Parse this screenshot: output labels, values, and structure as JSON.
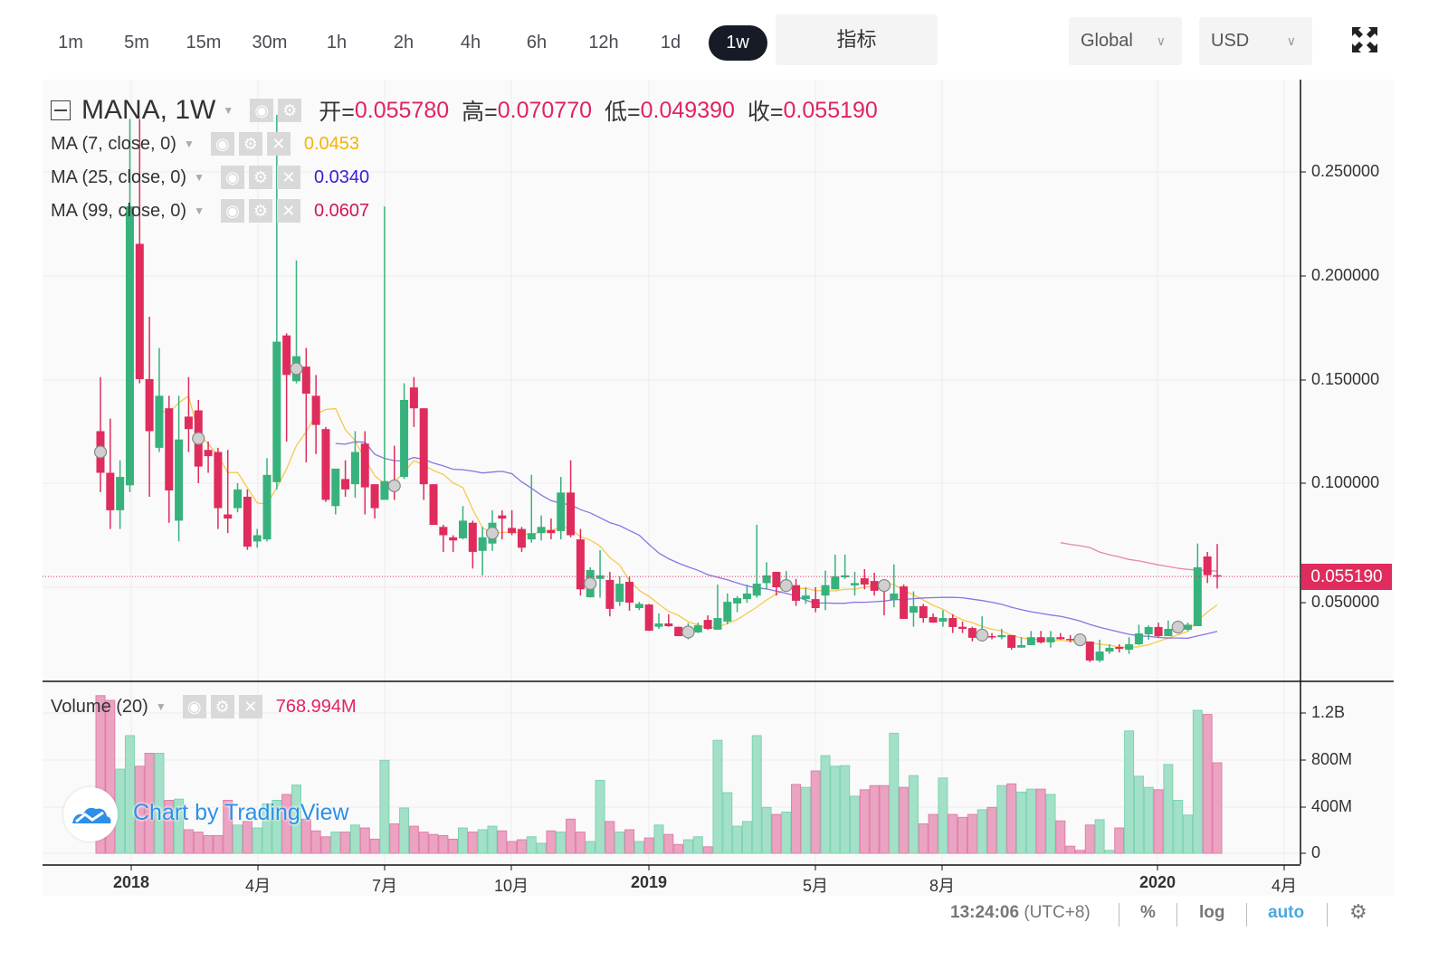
{
  "toolbar": {
    "intervals": [
      "1m",
      "5m",
      "15m",
      "30m",
      "1h",
      "2h",
      "4h",
      "6h",
      "12h",
      "1d",
      "1w"
    ],
    "active_interval": "1w",
    "indicators_label": "指标",
    "exchange_select": "Global",
    "currency_select": "USD",
    "fullscreen_icon": "fullscreen-icon"
  },
  "legend": {
    "symbol": "MANA, 1W",
    "open_label": "开=",
    "open": "0.055780",
    "high_label": "高=",
    "high": "0.070770",
    "low_label": "低=",
    "low": "0.049390",
    "close_label": "收=",
    "close": "0.055190",
    "ma": [
      {
        "label": "MA (7, close, 0)",
        "value": "0.0453",
        "color": "#f5b400"
      },
      {
        "label": "MA (25, close, 0)",
        "value": "0.0340",
        "color": "#3d1bd6"
      },
      {
        "label": "MA (99, close, 0)",
        "value": "0.0607",
        "color": "#d4145a"
      }
    ],
    "volume": {
      "label": "Volume (20)",
      "value": "768.994M"
    }
  },
  "price_axis": {
    "ticks": [
      "0.250000",
      "0.200000",
      "0.150000",
      "0.100000",
      "0.050000"
    ],
    "last_price": "0.055190"
  },
  "volume_axis": {
    "ticks": [
      "1.2B",
      "800M",
      "400M",
      "0"
    ]
  },
  "time_axis": {
    "ticks": [
      "2018",
      "4月",
      "7月",
      "10月",
      "2019",
      "5月",
      "8月",
      "2020",
      "4月"
    ]
  },
  "watermark": "Chart by TradingView",
  "status_bar": {
    "time": "13:24:06",
    "timezone": "(UTC+8)",
    "percent": "%",
    "log": "log",
    "auto": "auto"
  },
  "colors": {
    "up": "#37b27c",
    "down": "#df2c5d",
    "up_volume": "#a3e0c8",
    "down_volume": "#eba3c2",
    "auto_active": "#4aa8e0"
  },
  "chart_data": {
    "type": "candlestick",
    "symbol": "MANA",
    "interval": "1W",
    "ylim": [
      0.01,
      0.28
    ],
    "volume_ylim_millions": [
      0,
      1400
    ],
    "ohlc": [
      [
        0.125,
        0.151,
        0.0957,
        0.105
      ],
      [
        0.105,
        0.131,
        0.078,
        0.087
      ],
      [
        0.087,
        0.111,
        0.078,
        0.103
      ],
      [
        0.099,
        0.275,
        0.0957,
        0.233
      ],
      [
        0.215,
        0.275,
        0.148,
        0.15
      ],
      [
        0.15,
        0.18,
        0.0935,
        0.125
      ],
      [
        0.117,
        0.165,
        0.115,
        0.142
      ],
      [
        0.136,
        0.142,
        0.081,
        0.0965
      ],
      [
        0.082,
        0.142,
        0.072,
        0.121
      ],
      [
        0.132,
        0.151,
        0.115,
        0.126
      ],
      [
        0.135,
        0.14,
        0.1,
        0.108
      ],
      [
        0.116,
        0.12,
        0.105,
        0.113
      ],
      [
        0.115,
        0.117,
        0.078,
        0.088
      ],
      [
        0.085,
        0.116,
        0.076,
        0.083
      ],
      [
        0.088,
        0.1,
        0.086,
        0.097
      ],
      [
        0.0935,
        0.097,
        0.068,
        0.0695
      ],
      [
        0.072,
        0.078,
        0.069,
        0.075
      ],
      [
        0.073,
        0.112,
        0.072,
        0.104
      ],
      [
        0.1005,
        0.277,
        0.097,
        0.168
      ],
      [
        0.171,
        0.172,
        0.12,
        0.152
      ],
      [
        0.149,
        0.207,
        0.148,
        0.161
      ],
      [
        0.156,
        0.165,
        0.11,
        0.143
      ],
      [
        0.142,
        0.152,
        0.114,
        0.128
      ],
      [
        0.126,
        0.127,
        0.091,
        0.092
      ],
      [
        0.089,
        0.107,
        0.085,
        0.107
      ],
      [
        0.102,
        0.111,
        0.0935,
        0.097
      ],
      [
        0.0995,
        0.125,
        0.093,
        0.115
      ],
      [
        0.119,
        0.125,
        0.085,
        0.098
      ],
      [
        0.0995,
        0.0995,
        0.083,
        0.088
      ],
      [
        0.092,
        0.233,
        0.092,
        0.101
      ],
      [
        0.0995,
        0.118,
        0.092,
        0.098
      ],
      [
        0.103,
        0.148,
        0.102,
        0.14
      ],
      [
        0.146,
        0.151,
        0.127,
        0.136
      ],
      [
        0.136,
        0.136,
        0.092,
        0.0995
      ],
      [
        0.0995,
        0.0995,
        0.08,
        0.08
      ],
      [
        0.079,
        0.08,
        0.067,
        0.075
      ],
      [
        0.074,
        0.075,
        0.067,
        0.0725
      ],
      [
        0.0735,
        0.089,
        0.073,
        0.082
      ],
      [
        0.081,
        0.082,
        0.059,
        0.067
      ],
      [
        0.0675,
        0.079,
        0.0557,
        0.074
      ],
      [
        0.071,
        0.087,
        0.0675,
        0.081
      ],
      [
        0.0845,
        0.087,
        0.073,
        0.083
      ],
      [
        0.0785,
        0.087,
        0.075,
        0.076
      ],
      [
        0.078,
        0.079,
        0.067,
        0.069
      ],
      [
        0.073,
        0.104,
        0.0715,
        0.076
      ],
      [
        0.076,
        0.0845,
        0.0725,
        0.079
      ],
      [
        0.0775,
        0.083,
        0.073,
        0.076
      ],
      [
        0.077,
        0.103,
        0.073,
        0.0955
      ],
      [
        0.0955,
        0.111,
        0.074,
        0.075
      ],
      [
        0.073,
        0.078,
        0.046,
        0.049
      ],
      [
        0.0452,
        0.0596,
        0.045,
        0.0583
      ],
      [
        0.054,
        0.0678,
        0.045,
        0.0557
      ],
      [
        0.0535,
        0.0574,
        0.036,
        0.0396
      ],
      [
        0.043,
        0.0552,
        0.041,
        0.0517
      ],
      [
        0.0526,
        0.055,
        0.0387,
        0.0426
      ],
      [
        0.04,
        0.043,
        0.039,
        0.042
      ],
      [
        0.0417,
        0.042,
        0.029,
        0.0291
      ],
      [
        0.031,
        0.0374,
        0.03,
        0.0326
      ],
      [
        0.0326,
        0.037,
        0.031,
        0.0313
      ],
      [
        0.031,
        0.031,
        0.0265,
        0.0265
      ],
      [
        0.027,
        0.0327,
        0.025,
        0.03
      ],
      [
        0.0283,
        0.033,
        0.028,
        0.0317
      ],
      [
        0.0343,
        0.0365,
        0.0296,
        0.03
      ],
      [
        0.0296,
        0.0513,
        0.0296,
        0.0352
      ],
      [
        0.0335,
        0.047,
        0.0322,
        0.043
      ],
      [
        0.0422,
        0.0457,
        0.038,
        0.0448
      ],
      [
        0.0443,
        0.0513,
        0.0425,
        0.047
      ],
      [
        0.046,
        0.08,
        0.045,
        0.0517
      ],
      [
        0.052,
        0.062,
        0.049,
        0.0557
      ],
      [
        0.0574,
        0.0574,
        0.046,
        0.05
      ],
      [
        0.0496,
        0.0578,
        0.048,
        0.052
      ],
      [
        0.051,
        0.054,
        0.041,
        0.0435
      ],
      [
        0.0443,
        0.05,
        0.042,
        0.046
      ],
      [
        0.0443,
        0.05,
        0.038,
        0.04
      ],
      [
        0.046,
        0.058,
        0.039,
        0.051
      ],
      [
        0.049,
        0.0657,
        0.049,
        0.0552
      ],
      [
        0.0548,
        0.0657,
        0.054,
        0.0557
      ],
      [
        0.0509,
        0.0574,
        0.046,
        0.052
      ],
      [
        0.0543,
        0.0587,
        0.049,
        0.0513
      ],
      [
        0.053,
        0.057,
        0.046,
        0.0483
      ],
      [
        0.0517,
        0.053,
        0.0365,
        0.05
      ],
      [
        0.0439,
        0.061,
        0.0404,
        0.047
      ],
      [
        0.0504,
        0.0513,
        0.0348,
        0.0348
      ],
      [
        0.0378,
        0.048,
        0.031,
        0.0409
      ],
      [
        0.0409,
        0.042,
        0.033,
        0.0352
      ],
      [
        0.0357,
        0.0374,
        0.033,
        0.033
      ],
      [
        0.0335,
        0.039,
        0.031,
        0.0352
      ],
      [
        0.0352,
        0.037,
        0.028,
        0.0309
      ],
      [
        0.031,
        0.0335,
        0.028,
        0.03
      ],
      [
        0.0304,
        0.031,
        0.024,
        0.0257
      ],
      [
        0.026,
        0.036,
        0.025,
        0.028
      ],
      [
        0.0265,
        0.028,
        0.025,
        0.026
      ],
      [
        0.026,
        0.03,
        0.025,
        0.027
      ],
      [
        0.027,
        0.027,
        0.02,
        0.0209
      ],
      [
        0.021,
        0.026,
        0.0209,
        0.0222
      ],
      [
        0.0222,
        0.029,
        0.0222,
        0.026
      ],
      [
        0.026,
        0.029,
        0.023,
        0.0235
      ],
      [
        0.0235,
        0.029,
        0.021,
        0.026
      ],
      [
        0.026,
        0.028,
        0.0248,
        0.025
      ],
      [
        0.0252,
        0.027,
        0.0235,
        0.0248
      ],
      [
        0.025,
        0.027,
        0.022,
        0.0245
      ],
      [
        0.0239,
        0.024,
        0.014,
        0.0148
      ],
      [
        0.0148,
        0.0248,
        0.014,
        0.0191
      ],
      [
        0.0191,
        0.0226,
        0.018,
        0.0209
      ],
      [
        0.0213,
        0.0226,
        0.0187,
        0.0204
      ],
      [
        0.02,
        0.026,
        0.018,
        0.0226
      ],
      [
        0.0226,
        0.032,
        0.0222,
        0.0278
      ],
      [
        0.0274,
        0.0317,
        0.0248,
        0.0309
      ],
      [
        0.0309,
        0.033,
        0.026,
        0.0265
      ],
      [
        0.0265,
        0.034,
        0.0265,
        0.03
      ],
      [
        0.03,
        0.034,
        0.029,
        0.0317
      ],
      [
        0.0296,
        0.033,
        0.029,
        0.032
      ],
      [
        0.0313,
        0.071,
        0.0313,
        0.0596
      ],
      [
        0.0648,
        0.067,
        0.052,
        0.0558
      ],
      [
        0.05578,
        0.07077,
        0.04939,
        0.05519
      ]
    ],
    "volume_millions": [
      1340,
      1300,
      715,
      1000,
      740,
      850,
      850,
      450,
      460,
      200,
      180,
      150,
      150,
      450,
      240,
      270,
      215,
      420,
      450,
      500,
      580,
      290,
      190,
      140,
      180,
      180,
      240,
      215,
      120,
      790,
      250,
      385,
      230,
      180,
      160,
      150,
      120,
      215,
      180,
      200,
      230,
      190,
      100,
      115,
      140,
      85,
      190,
      180,
      290,
      180,
      100,
      620,
      270,
      180,
      200,
      100,
      130,
      240,
      160,
      75,
      115,
      140,
      55,
      960,
      515,
      230,
      270,
      1000,
      390,
      330,
      350,
      585,
      560,
      700,
      830,
      740,
      745,
      485,
      540,
      575,
      575,
      1020,
      560,
      660,
      250,
      330,
      640,
      330,
      305,
      330,
      370,
      390,
      575,
      590,
      520,
      545,
      545,
      500,
      275,
      60,
      25,
      240,
      285,
      25,
      215,
      1040,
      655,
      560,
      540,
      755,
      450,
      325,
      1215,
      1180,
      768.994
    ],
    "moving_averages": [
      7,
      25,
      99
    ],
    "marker_every_n_bars": 10,
    "grid": true
  }
}
